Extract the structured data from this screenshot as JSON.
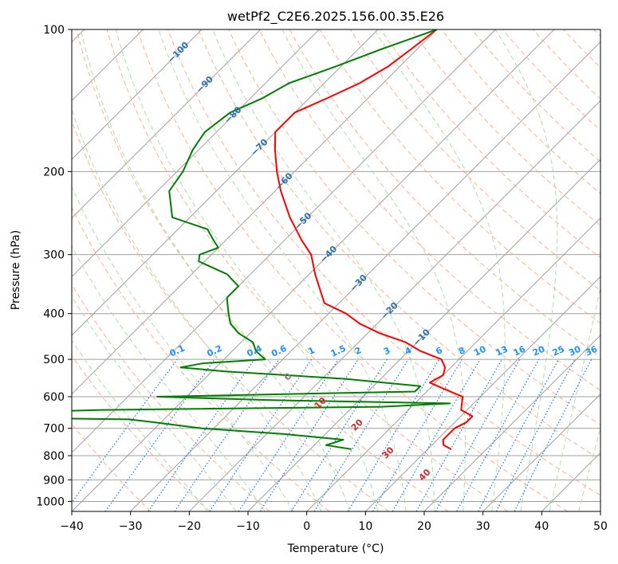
{
  "chart_data": {
    "type": "line",
    "title": "wetPf2_C2E6.2025.156.00.35.E26",
    "xlabel": "Temperature (°C)",
    "ylabel": "Pressure (hPa)",
    "xlim": [
      -40,
      50
    ],
    "ylim": [
      1050,
      100
    ],
    "y_scale": "log",
    "grid": true,
    "x_ticks": [
      "−40",
      "−30",
      "−20",
      "−10",
      "0",
      "10",
      "20",
      "30",
      "40",
      "50"
    ],
    "y_ticks": [
      "100",
      "200",
      "300",
      "400",
      "500",
      "600",
      "700",
      "800",
      "900",
      "1000"
    ],
    "series": [
      {
        "color": "#ff0000",
        "pressure": [
          100,
          110,
          120,
          130,
          140,
          150,
          165,
          180,
          200,
          220,
          250,
          280,
          300,
          330,
          360,
          380,
          400,
          420,
          440,
          460,
          480,
          500,
          520,
          540,
          560,
          580,
          600,
          620,
          640,
          660,
          680,
          700,
          720,
          740,
          760,
          775
        ],
        "temperature": [
          -60,
          -61,
          -62,
          -64,
          -67,
          -70,
          -70,
          -67,
          -63,
          -59,
          -53,
          -47,
          -43,
          -39,
          -35,
          -32.5,
          -27,
          -23,
          -18,
          -12,
          -8,
          -3,
          -1,
          0,
          -1,
          3,
          7,
          8,
          9,
          12,
          12,
          11,
          11,
          11,
          12,
          14
        ]
      },
      {
        "color": "#008000",
        "pressure": [
          100,
          110,
          120,
          130,
          140,
          150,
          165,
          180,
          200,
          220,
          250,
          265,
          280,
          290,
          300,
          310,
          330,
          350,
          370,
          380,
          400,
          420,
          440,
          460,
          480,
          500,
          510,
          520,
          530,
          550,
          570,
          585,
          600,
          610,
          620,
          630,
          640,
          650,
          660,
          670,
          680,
          700,
          720,
          740,
          760,
          775
        ],
        "temperature": [
          -60,
          -66,
          -71,
          -76,
          -78,
          -81,
          -82,
          -81,
          -79,
          -78,
          -73,
          -65,
          -62,
          -60,
          -62,
          -61,
          -54,
          -50,
          -50,
          -49,
          -47,
          -45,
          -42,
          -38,
          -36,
          -33,
          -43,
          -46,
          -38,
          -16,
          -2,
          -2,
          -45,
          -25,
          6,
          -5,
          -52,
          -72,
          -88,
          -46,
          -41,
          -32,
          -17,
          -6,
          -8,
          -3
        ]
      }
    ],
    "dry_adiabat_labels": [
      "−100",
      "−90",
      "−80",
      "−70",
      "−60",
      "−50",
      "−40",
      "−30",
      "−20",
      "−10"
    ],
    "moist_adiabat_labels": [
      "0",
      "10",
      "20",
      "30",
      "40"
    ],
    "mixing_ratio_labels": [
      "0.1",
      "0.2",
      "0.4",
      "0.6",
      "1",
      "1.5",
      "2",
      "3",
      "4",
      "6",
      "8",
      "10",
      "13",
      "16",
      "20",
      "25",
      "30",
      "36"
    ],
    "colors": {
      "temperature": "#ff0000",
      "dewpoint": "#008000",
      "isotherm": "#a0a0a0",
      "isobar": "#a0a0a0",
      "dry_adiabat": "#f4a582",
      "moist_adiabat": "#a6d8a6",
      "mixing_ratio": "#1f77d4",
      "dry_label": "#2a6fae",
      "moist_label": "#d62728",
      "mixing_label": "#1e90ff"
    }
  }
}
